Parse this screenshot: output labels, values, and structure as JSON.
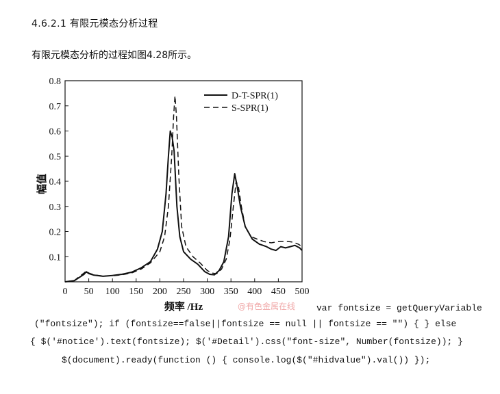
{
  "heading": "4.6.2.1 有限元模态分析过程",
  "intro": "有限元模态分析的过程如图4.28所示。",
  "watermark": "@有色金属在线",
  "code_lines": [
    "var fontsize = getQueryVariable",
    "(\"fontsize\"); if (fontsize==false||fontsize == null || fontsize == \"\") { } else",
    "{ $('#notice').text(fontsize); $('#Detail').css(\"font-size\", Number(fontsize)); }",
    "$(document).ready(function () { console.log($(\"#hidvalue\").val()) });"
  ],
  "chart_data": {
    "type": "line",
    "xlabel": "频率 /Hz",
    "ylabel": "幅值",
    "xlim": [
      0,
      500
    ],
    "ylim": [
      0,
      0.8
    ],
    "x_ticks": [
      0,
      50,
      100,
      150,
      200,
      250,
      300,
      350,
      400,
      450,
      500
    ],
    "y_ticks": [
      0.1,
      0.2,
      0.3,
      0.4,
      0.5,
      0.6,
      0.7,
      0.8
    ],
    "grid": false,
    "legend_position": "top-right",
    "series": [
      {
        "name": "D-T-SPR(1)",
        "style": "solid",
        "points": [
          [
            0,
            0.0
          ],
          [
            20,
            0.005
          ],
          [
            40,
            0.03
          ],
          [
            45,
            0.04
          ],
          [
            50,
            0.033
          ],
          [
            60,
            0.027
          ],
          [
            80,
            0.022
          ],
          [
            100,
            0.025
          ],
          [
            120,
            0.03
          ],
          [
            140,
            0.038
          ],
          [
            160,
            0.055
          ],
          [
            180,
            0.08
          ],
          [
            195,
            0.13
          ],
          [
            205,
            0.2
          ],
          [
            213,
            0.35
          ],
          [
            218,
            0.5
          ],
          [
            222,
            0.6
          ],
          [
            226,
            0.575
          ],
          [
            230,
            0.52
          ],
          [
            236,
            0.3
          ],
          [
            242,
            0.18
          ],
          [
            250,
            0.12
          ],
          [
            265,
            0.09
          ],
          [
            280,
            0.07
          ],
          [
            295,
            0.04
          ],
          [
            305,
            0.03
          ],
          [
            315,
            0.028
          ],
          [
            325,
            0.045
          ],
          [
            335,
            0.08
          ],
          [
            345,
            0.18
          ],
          [
            352,
            0.35
          ],
          [
            358,
            0.43
          ],
          [
            363,
            0.38
          ],
          [
            370,
            0.3
          ],
          [
            380,
            0.22
          ],
          [
            395,
            0.17
          ],
          [
            410,
            0.15
          ],
          [
            425,
            0.14
          ],
          [
            435,
            0.13
          ],
          [
            445,
            0.125
          ],
          [
            455,
            0.14
          ],
          [
            465,
            0.135
          ],
          [
            475,
            0.14
          ],
          [
            485,
            0.145
          ],
          [
            495,
            0.135
          ],
          [
            500,
            0.125
          ]
        ]
      },
      {
        "name": "S-SPR(1)",
        "style": "dashed",
        "points": [
          [
            0,
            0.0
          ],
          [
            20,
            0.006
          ],
          [
            40,
            0.035
          ],
          [
            45,
            0.043
          ],
          [
            50,
            0.035
          ],
          [
            60,
            0.028
          ],
          [
            80,
            0.023
          ],
          [
            100,
            0.024
          ],
          [
            120,
            0.028
          ],
          [
            140,
            0.035
          ],
          [
            160,
            0.05
          ],
          [
            180,
            0.075
          ],
          [
            200,
            0.12
          ],
          [
            210,
            0.18
          ],
          [
            218,
            0.3
          ],
          [
            225,
            0.5
          ],
          [
            229,
            0.66
          ],
          [
            232,
            0.74
          ],
          [
            235,
            0.66
          ],
          [
            240,
            0.42
          ],
          [
            246,
            0.22
          ],
          [
            255,
            0.14
          ],
          [
            270,
            0.1
          ],
          [
            285,
            0.075
          ],
          [
            300,
            0.045
          ],
          [
            310,
            0.035
          ],
          [
            320,
            0.032
          ],
          [
            330,
            0.05
          ],
          [
            340,
            0.09
          ],
          [
            348,
            0.17
          ],
          [
            355,
            0.3
          ],
          [
            361,
            0.4
          ],
          [
            366,
            0.375
          ],
          [
            372,
            0.3
          ],
          [
            380,
            0.22
          ],
          [
            392,
            0.18
          ],
          [
            405,
            0.17
          ],
          [
            420,
            0.16
          ],
          [
            435,
            0.155
          ],
          [
            450,
            0.16
          ],
          [
            465,
            0.162
          ],
          [
            480,
            0.158
          ],
          [
            492,
            0.15
          ],
          [
            500,
            0.14
          ]
        ]
      }
    ]
  }
}
